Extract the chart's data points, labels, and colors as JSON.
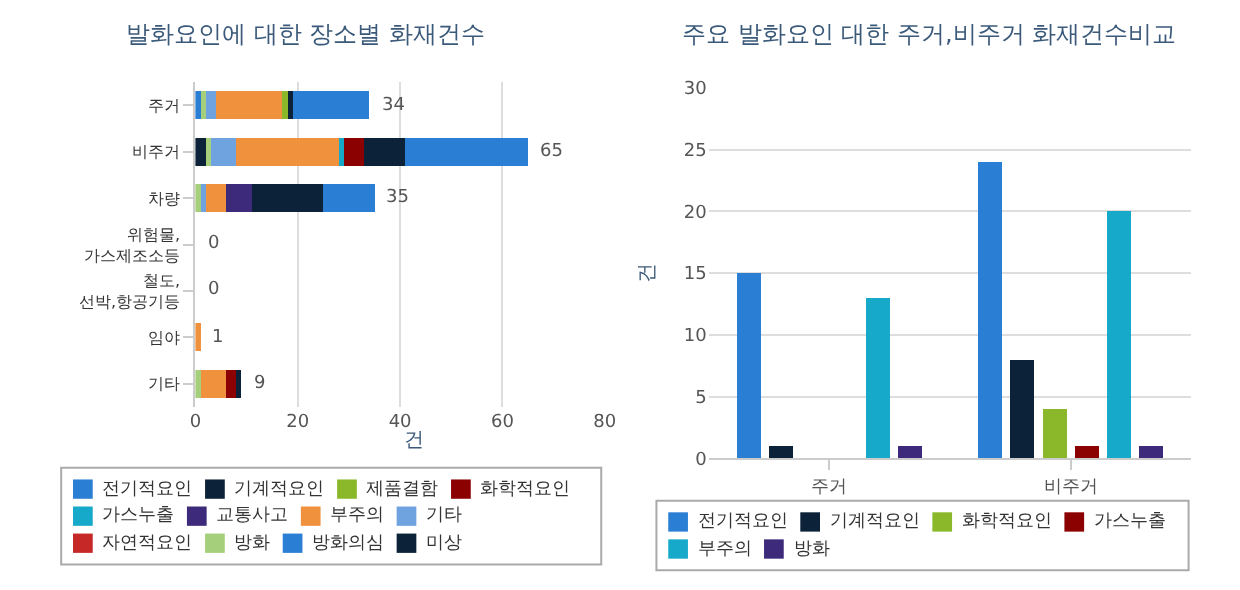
{
  "chart_data": [
    {
      "type": "bar",
      "title": "발화요인에 대한 장소별 화재건수",
      "orientation": "horizontal",
      "stacked": true,
      "xlabel": "건",
      "categories": [
        "주거",
        "비주거",
        "차량",
        "위험물,가스제조소등",
        "철도,선박,항공기등",
        "임야",
        "기타"
      ],
      "xlim": [
        0,
        80
      ],
      "xticks": [
        0,
        20,
        40,
        60,
        80
      ],
      "grid": "x",
      "legend": "bottom",
      "totals": [
        "34",
        "65",
        "35",
        "0",
        "0",
        "1",
        "9"
      ],
      "series": [
        {
          "name": "미상",
          "color": "#0c2238",
          "values": [
            0,
            2,
            0,
            0,
            0,
            0,
            0
          ]
        },
        {
          "name": "방화의심",
          "color": "#2a7fd4",
          "values": [
            1,
            0,
            0,
            0,
            0,
            0,
            0
          ]
        },
        {
          "name": "방화",
          "color": "#a5cf7a",
          "values": [
            1,
            1,
            1,
            0,
            0,
            0,
            1
          ]
        },
        {
          "name": "자연적요인",
          "color": "#c62828",
          "values": [
            0,
            0,
            0,
            0,
            0,
            0,
            0
          ]
        },
        {
          "name": "기타",
          "color": "#6fa3e0",
          "values": [
            2,
            5,
            1,
            0,
            0,
            0,
            0
          ]
        },
        {
          "name": "부주의",
          "color": "#f0913e",
          "values": [
            13,
            20,
            4,
            0,
            0,
            1,
            5
          ]
        },
        {
          "name": "교통사고",
          "color": "#3e2a7a",
          "values": [
            0,
            0,
            5,
            0,
            0,
            0,
            0
          ]
        },
        {
          "name": "가스누출",
          "color": "#17a9c9",
          "values": [
            0,
            1,
            0,
            0,
            0,
            0,
            0
          ]
        },
        {
          "name": "화학적요인",
          "color": "#8b0000",
          "values": [
            0,
            4,
            0,
            0,
            0,
            0,
            2
          ]
        },
        {
          "name": "제품결함",
          "color": "#8ab82a",
          "values": [
            1,
            0,
            0,
            0,
            0,
            0,
            0
          ]
        },
        {
          "name": "기계적요인",
          "color": "#0c2238",
          "values": [
            1,
            8,
            14,
            0,
            0,
            0,
            1
          ]
        },
        {
          "name": "전기적요인",
          "color": "#2a7fd4",
          "values": [
            15,
            24,
            10,
            0,
            0,
            0,
            0
          ]
        }
      ]
    },
    {
      "type": "bar",
      "title": "주요 발화요인 대한 주거,비주거 화재건수비교",
      "ylabel": "건",
      "categories": [
        "주거",
        "비주거"
      ],
      "ylim": [
        0,
        30
      ],
      "yticks": [
        0,
        5,
        10,
        15,
        20,
        25,
        30
      ],
      "grid": "y",
      "legend": "bottom",
      "series": [
        {
          "name": "전기적요인",
          "color": "#2a7fd4",
          "values": [
            15,
            24
          ]
        },
        {
          "name": "기계적요인",
          "color": "#0c2238",
          "values": [
            1,
            8
          ]
        },
        {
          "name": "화학적요인",
          "color": "#8ab82a",
          "values": [
            0,
            4
          ]
        },
        {
          "name": "가스누출",
          "color": "#8b0000",
          "values": [
            0,
            1
          ]
        },
        {
          "name": "부주의",
          "color": "#17a9c9",
          "values": [
            13,
            20
          ]
        },
        {
          "name": "방화",
          "color": "#3e2a7a",
          "values": [
            1,
            1
          ]
        }
      ]
    }
  ]
}
